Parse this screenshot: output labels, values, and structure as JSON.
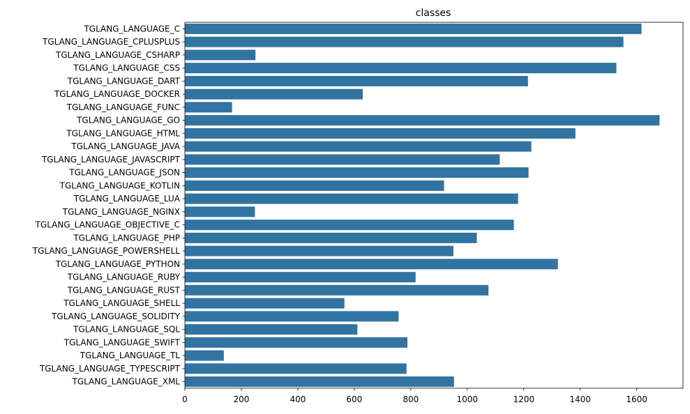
{
  "chart_data": {
    "type": "bar",
    "orientation": "horizontal",
    "title": "classes",
    "xlabel": "",
    "ylabel": "",
    "categories": [
      "TGLANG_LANGUAGE_C",
      "TGLANG_LANGUAGE_CPLUSPLUS",
      "TGLANG_LANGUAGE_CSHARP",
      "TGLANG_LANGUAGE_CSS",
      "TGLANG_LANGUAGE_DART",
      "TGLANG_LANGUAGE_DOCKER",
      "TGLANG_LANGUAGE_FUNC",
      "TGLANG_LANGUAGE_GO",
      "TGLANG_LANGUAGE_HTML",
      "TGLANG_LANGUAGE_JAVA",
      "TGLANG_LANGUAGE_JAVASCRIPT",
      "TGLANG_LANGUAGE_JSON",
      "TGLANG_LANGUAGE_KOTLIN",
      "TGLANG_LANGUAGE_LUA",
      "TGLANG_LANGUAGE_NGINX",
      "TGLANG_LANGUAGE_OBJECTIVE_C",
      "TGLANG_LANGUAGE_PHP",
      "TGLANG_LANGUAGE_POWERSHELL",
      "TGLANG_LANGUAGE_PYTHON",
      "TGLANG_LANGUAGE_RUBY",
      "TGLANG_LANGUAGE_RUST",
      "TGLANG_LANGUAGE_SHELL",
      "TGLANG_LANGUAGE_SOLIDITY",
      "TGLANG_LANGUAGE_SQL",
      "TGLANG_LANGUAGE_SWIFT",
      "TGLANG_LANGUAGE_TL",
      "TGLANG_LANGUAGE_TYPESCRIPT",
      "TGLANG_LANGUAGE_XML"
    ],
    "values": [
      1617,
      1553,
      250,
      1528,
      1215,
      630,
      167,
      1681,
      1383,
      1227,
      1115,
      1217,
      918,
      1180,
      248,
      1165,
      1034,
      951,
      1321,
      817,
      1075,
      565,
      757,
      611,
      788,
      138,
      785,
      953
    ],
    "xticks": [
      0,
      200,
      400,
      600,
      800,
      1000,
      1200,
      1400,
      1600
    ],
    "xlim": [
      0,
      1764
    ],
    "grid": false,
    "legend": "none",
    "bar_color": "#3274a1"
  }
}
